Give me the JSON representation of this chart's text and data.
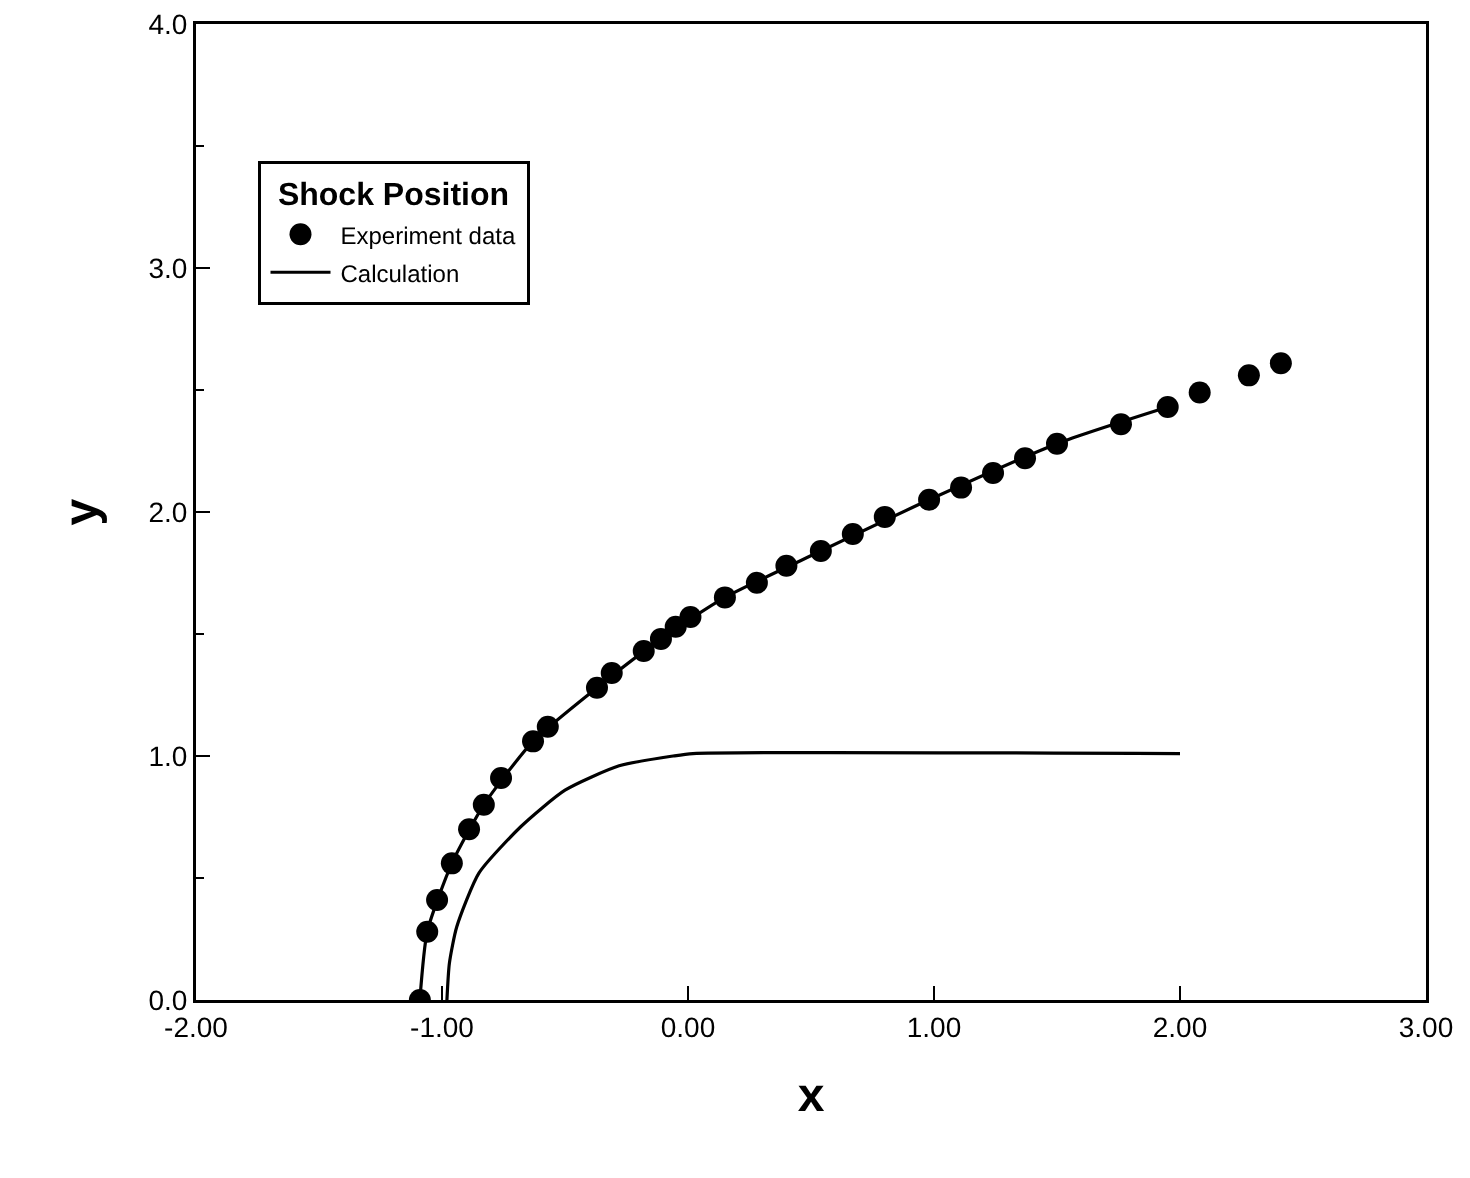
{
  "chart_data": {
    "type": "scatter",
    "xlabel": "x",
    "ylabel": "y",
    "legend_title": "Shock Position",
    "legend": "top left",
    "grid": false,
    "xlim": [
      -2,
      3
    ],
    "xticks": [
      {
        "value": -2,
        "label": "-2.00"
      },
      {
        "value": -1,
        "label": "-1.00"
      },
      {
        "value": 0,
        "label": "0.00"
      },
      {
        "value": 1,
        "label": "1.00"
      },
      {
        "value": 2,
        "label": "2.00"
      },
      {
        "value": 3,
        "label": "3.00"
      }
    ],
    "ylim": [
      0,
      4
    ],
    "yticks": [
      {
        "value": 0,
        "label": "0.0"
      },
      {
        "value": 1,
        "label": "1.0"
      },
      {
        "value": 2,
        "label": "2.0"
      },
      {
        "value": 3,
        "label": "3.0"
      },
      {
        "value": 4,
        "label": "4.0"
      }
    ],
    "series": [
      {
        "name": "Experiment data",
        "marker": "circle",
        "color": "#000000",
        "x": [
          -1.09,
          -1.06,
          -1.02,
          -0.96,
          -0.89,
          -0.83,
          -0.76,
          -0.63,
          -0.57,
          -0.37,
          -0.31,
          -0.18,
          -0.11,
          -0.05,
          0.01,
          0.15,
          0.28,
          0.4,
          0.54,
          0.67,
          0.8,
          0.98,
          1.11,
          1.24,
          1.37,
          1.5,
          1.76,
          1.95,
          2.08,
          2.28,
          2.41
        ],
        "values": [
          0,
          0.28,
          0.41,
          0.56,
          0.7,
          0.8,
          0.91,
          1.06,
          1.12,
          1.28,
          1.34,
          1.43,
          1.48,
          1.53,
          1.57,
          1.65,
          1.71,
          1.78,
          1.84,
          1.91,
          1.98,
          2.05,
          2.1,
          2.16,
          2.22,
          2.28,
          2.36,
          2.43,
          2.49,
          2.56,
          2.61
        ]
      },
      {
        "name": "Calculation",
        "type": "line",
        "line_style": "solid",
        "color": "#000000",
        "x": [
          -1.09,
          -1.06,
          -0.96,
          -0.83,
          -0.63,
          -0.37,
          -0.11,
          0.15,
          0.54,
          0.98,
          1.5,
          1.95
        ],
        "values": [
          0,
          0.28,
          0.56,
          0.8,
          1.06,
          1.28,
          1.48,
          1.65,
          1.84,
          2.05,
          2.28,
          2.43
        ]
      },
      {
        "type": "line",
        "line_style": "solid",
        "color": "#000000",
        "x": [
          -0.98,
          -0.97,
          -0.94,
          -0.85,
          -0.68,
          -0.5,
          -0.28,
          -0.06,
          0.02,
          2.0
        ],
        "values": [
          0,
          0.15,
          0.3,
          0.52,
          0.71,
          0.86,
          0.96,
          1.0,
          1.01,
          1.01
        ]
      }
    ]
  }
}
